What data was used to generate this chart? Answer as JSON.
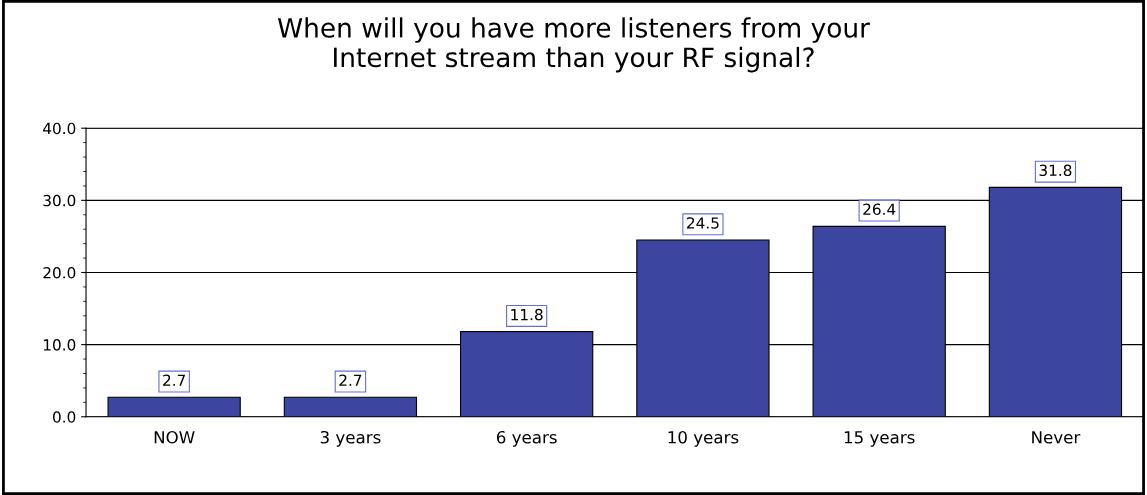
{
  "chart_data": {
    "type": "bar",
    "title": "When will you have more listeners from your\nInternet stream than your RF signal?",
    "categories": [
      "NOW",
      "3 years",
      "6 years",
      "10 years",
      "15 years",
      "Never"
    ],
    "values": [
      2.7,
      2.7,
      11.8,
      24.5,
      26.4,
      31.8
    ],
    "color": "#3c46a0",
    "ylim": [
      0,
      40
    ],
    "yticks": [
      {
        "value": 0,
        "label": "0.0"
      },
      {
        "value": 10,
        "label": "10.0"
      },
      {
        "value": 20,
        "label": "20.0"
      },
      {
        "value": 30,
        "label": "30.0"
      },
      {
        "value": 40,
        "label": "40.0"
      }
    ],
    "grid": "y",
    "data_labels": true
  }
}
